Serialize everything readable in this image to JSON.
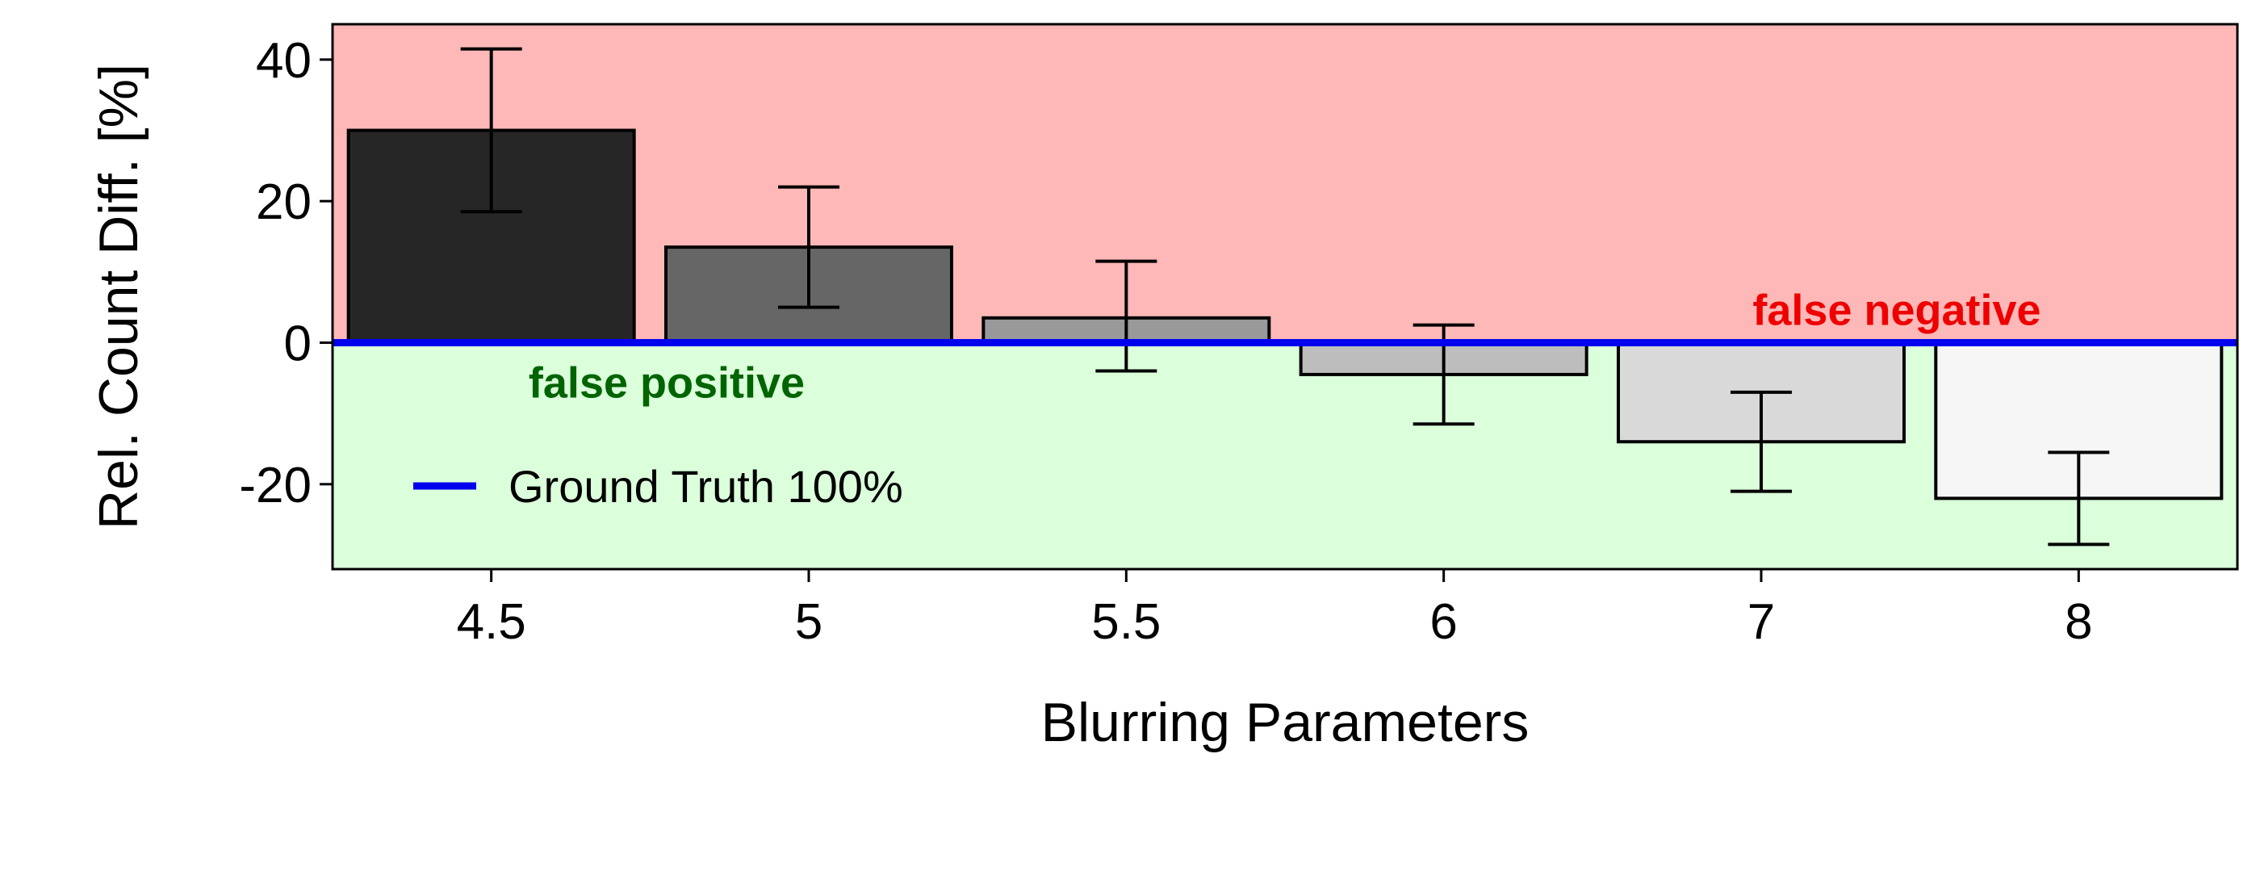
{
  "chart_data": {
    "type": "bar",
    "xlabel": "Blurring Parameters",
    "ylabel": "Rel. Count Diff. [%]",
    "ylim": [
      -32,
      45
    ],
    "yticks": [
      -20,
      0,
      20,
      40
    ],
    "categories": [
      "4.5",
      "5",
      "5.5",
      "6",
      "7",
      "8"
    ],
    "values": [
      30,
      13.5,
      3.5,
      -4.5,
      -14,
      -22
    ],
    "error_low": [
      18.5,
      5,
      -4,
      -11.5,
      -21,
      -28.5
    ],
    "error_high": [
      41.5,
      22,
      11.5,
      2.5,
      -7,
      -15.5
    ],
    "bar_colors": [
      "#262626",
      "#666666",
      "#999999",
      "#bdbdbd",
      "#d9d9d9",
      "#f5f5f5"
    ],
    "reference_line": {
      "y": 0,
      "color": "#0000ee",
      "label": "Ground Truth 100%"
    },
    "regions": [
      {
        "label": "false negative",
        "side": "above",
        "fill": "#ffb8b8",
        "text_color": "#ee0000"
      },
      {
        "label": "false positive",
        "side": "below",
        "fill": "#dbffdb",
        "text_color": "#006400"
      }
    ],
    "legend": {
      "placement": "bottom-left"
    },
    "grid": false
  }
}
